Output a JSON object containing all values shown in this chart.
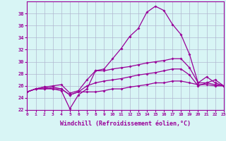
{
  "x": [
    0,
    1,
    2,
    3,
    4,
    5,
    6,
    7,
    8,
    9,
    10,
    11,
    12,
    13,
    14,
    15,
    16,
    17,
    18,
    19,
    20,
    21,
    22,
    23
  ],
  "line1": [
    25.0,
    25.5,
    25.8,
    25.5,
    25.2,
    22.2,
    24.5,
    25.5,
    28.5,
    28.8,
    30.5,
    32.2,
    34.2,
    35.5,
    38.2,
    39.2,
    38.5,
    36.2,
    34.5,
    31.2,
    26.5,
    27.5,
    26.5,
    26.0
  ],
  "line2": [
    25.0,
    25.5,
    25.8,
    26.0,
    26.2,
    24.8,
    25.2,
    27.0,
    28.5,
    28.5,
    28.8,
    29.0,
    29.2,
    29.5,
    29.8,
    30.0,
    30.2,
    30.5,
    30.5,
    29.0,
    26.5,
    26.5,
    27.0,
    26.0
  ],
  "line3": [
    25.0,
    25.5,
    25.5,
    25.8,
    25.5,
    24.5,
    25.0,
    26.0,
    26.5,
    26.8,
    27.0,
    27.2,
    27.5,
    27.8,
    28.0,
    28.2,
    28.5,
    28.8,
    28.8,
    27.8,
    26.0,
    26.5,
    26.2,
    26.0
  ],
  "line4": [
    25.0,
    25.5,
    25.5,
    25.5,
    25.5,
    24.5,
    25.0,
    25.0,
    25.0,
    25.2,
    25.5,
    25.5,
    25.8,
    26.0,
    26.2,
    26.5,
    26.5,
    26.8,
    26.8,
    26.5,
    26.2,
    26.2,
    26.0,
    26.0
  ],
  "color": "#990099",
  "bg_color": "#d8f5f5",
  "grid_color": "#b0b8d0",
  "xlabel": "Windchill (Refroidissement éolien,°C)",
  "ylim": [
    22,
    40
  ],
  "xlim": [
    0,
    23
  ],
  "yticks": [
    22,
    24,
    26,
    28,
    30,
    32,
    34,
    36,
    38
  ],
  "xticks": [
    0,
    1,
    2,
    3,
    4,
    5,
    6,
    7,
    8,
    9,
    10,
    11,
    12,
    13,
    14,
    15,
    16,
    17,
    18,
    19,
    20,
    21,
    22,
    23
  ]
}
